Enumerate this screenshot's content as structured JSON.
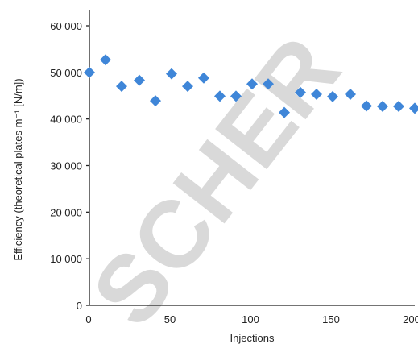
{
  "chart_data": {
    "type": "scatter",
    "xlabel": "Injections",
    "ylabel": "Efficiency (theoretical plates m⁻¹ [N/m])",
    "xlim": [
      0,
      200
    ],
    "ylim": [
      0,
      60000
    ],
    "x_ticks": [
      0,
      50,
      100,
      150,
      200
    ],
    "y_ticks": [
      0,
      10000,
      20000,
      30000,
      40000,
      50000,
      60000
    ],
    "x_tick_labels": [
      "0",
      "50",
      "100",
      "150",
      "200"
    ],
    "y_tick_labels": [
      "0",
      "10 000",
      "20 000",
      "30 000",
      "40 000",
      "50 000",
      "60 000"
    ],
    "grid": false,
    "marker": "diamond",
    "marker_color": "#3f86d8",
    "watermark": "SCHER",
    "watermark_color": "#d9d9d9",
    "series": [
      {
        "x": [
          0,
          10,
          20,
          31,
          41,
          51,
          61,
          71,
          81,
          91,
          101,
          111,
          121,
          131,
          141,
          151,
          162,
          172,
          182,
          192,
          202
        ],
        "y": [
          50000,
          52700,
          47000,
          48300,
          43900,
          49700,
          47000,
          48800,
          44900,
          44900,
          47500,
          47500,
          41400,
          45700,
          45300,
          44800,
          45300,
          42800,
          42700,
          42700,
          42300
        ]
      }
    ]
  }
}
